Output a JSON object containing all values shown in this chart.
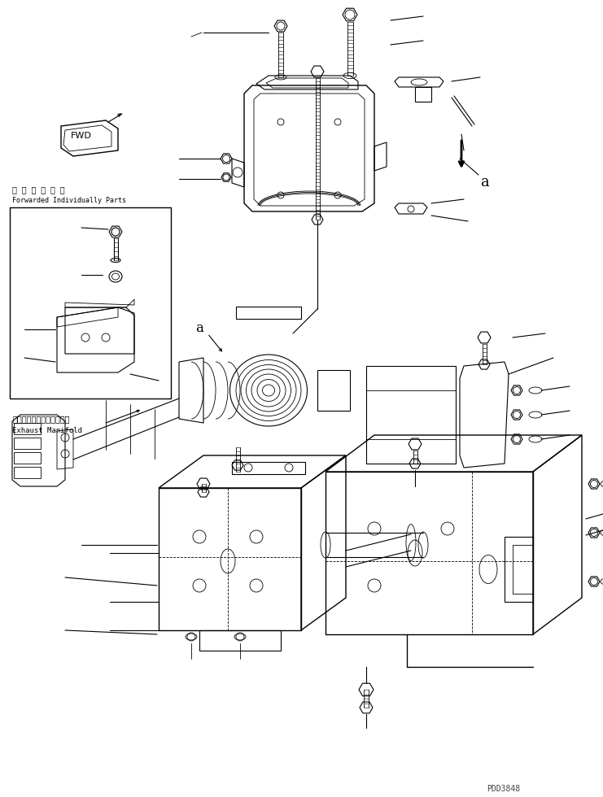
{
  "background_color": "#ffffff",
  "line_color": "#000000",
  "fig_width": 7.41,
  "fig_height": 9.8,
  "dpi": 100,
  "watermark": "PDD3848",
  "label_individually_jp": "単 品 発 送 部 品",
  "label_individually_en": "Forwarded Individually Parts",
  "label_exhaust_jp": "エキゾーストマニホールド",
  "label_exhaust_en": "Exhaust Manifold"
}
